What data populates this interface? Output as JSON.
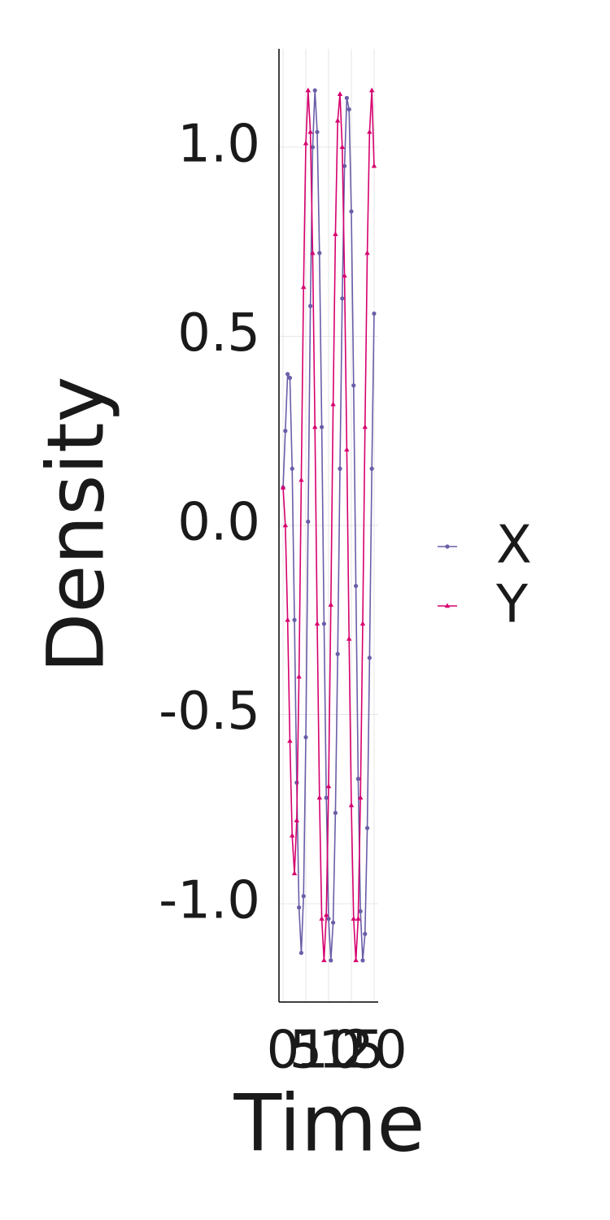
{
  "chart_data": {
    "type": "line",
    "x_label": "Time",
    "y_label": "Density",
    "x": [
      0,
      0.5,
      1,
      1.5,
      2,
      2.5,
      3,
      3.5,
      4,
      4.5,
      5,
      5.5,
      6,
      6.5,
      7,
      7.5,
      8,
      8.5,
      9,
      9.5,
      10,
      10.5,
      11,
      11.5,
      12,
      12.5,
      13,
      13.5,
      14,
      14.5,
      15,
      15.5,
      16,
      16.5,
      17,
      17.5,
      18,
      18.5,
      19,
      19.5,
      20
    ],
    "series": [
      {
        "name": "X",
        "color": "#6a5ea8",
        "marker": "circle",
        "values": [
          0.1,
          0.25,
          0.4,
          0.39,
          0.15,
          -0.25,
          -0.68,
          -1.01,
          -1.13,
          -0.98,
          -0.56,
          0.01,
          0.58,
          1.0,
          1.15,
          1.04,
          0.72,
          0.26,
          -0.26,
          -0.72,
          -1.04,
          -1.15,
          -1.05,
          -0.76,
          -0.34,
          0.15,
          0.6,
          0.95,
          1.13,
          1.1,
          0.83,
          0.37,
          -0.16,
          -0.67,
          -1.02,
          -1.15,
          -1.08,
          -0.8,
          -0.35,
          0.15,
          0.56
        ]
      },
      {
        "name": "Y",
        "color": "#d6006e",
        "marker": "triangle",
        "values": [
          0.1,
          0.0,
          -0.25,
          -0.57,
          -0.82,
          -0.92,
          -0.78,
          -0.4,
          0.12,
          0.63,
          1.01,
          1.15,
          1.04,
          0.72,
          0.26,
          -0.26,
          -0.72,
          -1.04,
          -1.15,
          -1.03,
          -0.69,
          -0.21,
          0.32,
          0.77,
          1.07,
          1.14,
          1.0,
          0.66,
          0.2,
          -0.3,
          -0.74,
          -1.04,
          -1.15,
          -1.04,
          -0.72,
          -0.26,
          0.26,
          0.72,
          1.04,
          1.15,
          0.95
        ]
      }
    ],
    "xlim": [
      -0.9,
      20.9
    ],
    "ylim": [
      -1.26,
      1.26
    ],
    "xticks": [
      0,
      5,
      10,
      15,
      20
    ],
    "yticks": [
      {
        "value": -1,
        "label": "-1.0"
      },
      -0.5,
      {
        "value": 0,
        "label": "0.0"
      },
      0.5,
      {
        "value": 1,
        "label": "1.0"
      }
    ],
    "grid": true,
    "legend": "right"
  }
}
